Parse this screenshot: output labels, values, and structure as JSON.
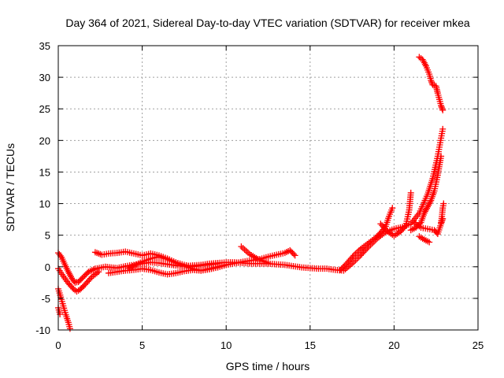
{
  "chart_data": {
    "type": "scatter",
    "title": "Day 364 of 2021, Sidereal Day-to-day VTEC variation (SDTVAR) for receiver mkea",
    "xlabel": "GPS time / hours",
    "ylabel": "SDTVAR / TECUs",
    "xlim": [
      0,
      25
    ],
    "ylim": [
      -10,
      35
    ],
    "xticks": [
      0,
      5,
      10,
      15,
      20,
      25
    ],
    "yticks": [
      -10,
      -5,
      0,
      5,
      10,
      15,
      20,
      25,
      30,
      35
    ],
    "grid": true,
    "marker": "+",
    "color": "#ff0000",
    "series": [
      {
        "name": "trace-a",
        "points": [
          [
            0,
            2.2
          ],
          [
            0.2,
            1.5
          ],
          [
            0.4,
            0.3
          ],
          [
            0.6,
            -0.8
          ],
          [
            0.8,
            -1.8
          ],
          [
            1.0,
            -2.5
          ],
          [
            1.2,
            -2.4
          ],
          [
            1.5,
            -1.6
          ],
          [
            1.8,
            -0.8
          ],
          [
            2.2,
            -0.3
          ],
          [
            2.8,
            0.0
          ],
          [
            3.5,
            -0.2
          ],
          [
            4.0,
            0.1
          ],
          [
            4.5,
            0.3
          ],
          [
            5.0,
            0.5
          ],
          [
            5.5,
            0.7
          ],
          [
            6.0,
            0.6
          ],
          [
            6.5,
            0.4
          ],
          [
            7.0,
            0.2
          ],
          [
            7.5,
            0.1
          ],
          [
            8.0,
            0.2
          ],
          [
            8.5,
            0.3
          ],
          [
            9.0,
            0.5
          ],
          [
            9.5,
            0.6
          ],
          [
            10.0,
            0.7
          ],
          [
            10.5,
            0.7
          ],
          [
            11.0,
            0.6
          ],
          [
            11.5,
            0.5
          ],
          [
            12.0,
            0.5
          ],
          [
            12.5,
            0.5
          ],
          [
            13.0,
            0.4
          ],
          [
            13.5,
            0.3
          ],
          [
            14.0,
            0.1
          ],
          [
            14.5,
            -0.1
          ],
          [
            15.0,
            -0.2
          ],
          [
            15.5,
            -0.3
          ],
          [
            16.0,
            -0.3
          ],
          [
            16.5,
            -0.5
          ],
          [
            17.0,
            -0.6
          ],
          [
            17.5,
            0.5
          ],
          [
            18.0,
            1.8
          ],
          [
            18.5,
            3.2
          ],
          [
            19.0,
            4.5
          ],
          [
            19.5,
            5.5
          ],
          [
            20.0,
            6.0
          ],
          [
            20.5,
            6.3
          ],
          [
            21.0,
            6.8
          ],
          [
            21.5,
            8.5
          ],
          [
            22.0,
            11.5
          ],
          [
            22.3,
            14.0
          ],
          [
            22.6,
            17.5
          ],
          [
            22.9,
            21.8
          ]
        ]
      },
      {
        "name": "trace-b",
        "points": [
          [
            2.2,
            2.3
          ],
          [
            2.6,
            1.9
          ],
          [
            3.0,
            2.1
          ],
          [
            3.5,
            2.2
          ],
          [
            4.0,
            2.4
          ],
          [
            4.5,
            2.1
          ],
          [
            5.0,
            1.8
          ],
          [
            5.5,
            2.1
          ],
          [
            6.0,
            1.8
          ],
          [
            6.5,
            1.3
          ],
          [
            7.0,
            0.7
          ],
          [
            7.5,
            0.3
          ],
          [
            8.0,
            0.0
          ],
          [
            8.5,
            0.2
          ],
          [
            9.0,
            0.3
          ],
          [
            9.5,
            0.5
          ]
        ]
      },
      {
        "name": "trace-c",
        "points": [
          [
            4.2,
            -0.2
          ],
          [
            5.0,
            0.8
          ],
          [
            5.5,
            1.3
          ],
          [
            6.0,
            1.6
          ],
          [
            6.5,
            1.2
          ],
          [
            7.0,
            0.6
          ],
          [
            7.5,
            0.1
          ],
          [
            8.0,
            -0.3
          ],
          [
            8.5,
            -0.6
          ],
          [
            9.0,
            -0.4
          ],
          [
            9.5,
            -0.1
          ],
          [
            10.0,
            0.3
          ],
          [
            11.0,
            0.8
          ],
          [
            12.0,
            1.2
          ],
          [
            12.5,
            1.6
          ],
          [
            13.0,
            1.9
          ],
          [
            13.5,
            2.2
          ],
          [
            13.8,
            2.6
          ],
          [
            14.1,
            1.8
          ]
        ]
      },
      {
        "name": "trace-d",
        "points": [
          [
            3.0,
            -1.0
          ],
          [
            3.5,
            -0.8
          ],
          [
            4.0,
            -0.6
          ],
          [
            4.5,
            -0.5
          ],
          [
            5.0,
            -0.3
          ],
          [
            5.5,
            -0.5
          ],
          [
            6.0,
            -0.9
          ],
          [
            6.5,
            -1.2
          ],
          [
            7.0,
            -1.0
          ],
          [
            7.5,
            -0.7
          ],
          [
            8.0,
            -0.5
          ],
          [
            8.5,
            -0.6
          ],
          [
            9.0,
            -0.3
          ],
          [
            9.5,
            0.0
          ],
          [
            10.0,
            0.3
          ]
        ]
      },
      {
        "name": "trace-e",
        "points": [
          [
            0,
            -0.3
          ],
          [
            0.3,
            -1.5
          ],
          [
            0.6,
            -2.6
          ],
          [
            0.9,
            -3.5
          ],
          [
            1.1,
            -3.9
          ],
          [
            1.3,
            -3.6
          ],
          [
            1.6,
            -2.8
          ],
          [
            2.0,
            -1.6
          ],
          [
            2.4,
            -0.8
          ]
        ]
      },
      {
        "name": "trace-f",
        "points": [
          [
            0,
            -3.5
          ],
          [
            0.15,
            -4.8
          ],
          [
            0.3,
            -6.2
          ],
          [
            0.45,
            -7.6
          ],
          [
            0.6,
            -8.8
          ],
          [
            0.7,
            -9.8
          ]
        ]
      },
      {
        "name": "trace-g",
        "points": [
          [
            0,
            -6.5
          ],
          [
            0.1,
            -7.5
          ]
        ]
      },
      {
        "name": "trace-h",
        "points": [
          [
            10.9,
            3.2
          ],
          [
            11.4,
            2.0
          ],
          [
            11.9,
            1.2
          ],
          [
            12.5,
            0.6
          ]
        ]
      },
      {
        "name": "trace-i",
        "points": [
          [
            16.8,
            -0.5
          ],
          [
            17.2,
            0.6
          ],
          [
            17.6,
            1.8
          ],
          [
            18.0,
            2.8
          ],
          [
            18.5,
            3.8
          ],
          [
            18.9,
            4.6
          ],
          [
            19.2,
            5.4
          ],
          [
            19.5,
            6.4
          ],
          [
            19.7,
            8.0
          ],
          [
            19.9,
            9.3
          ]
        ]
      },
      {
        "name": "trace-j",
        "points": [
          [
            19.2,
            6.8
          ],
          [
            19.6,
            5.6
          ],
          [
            20.0,
            4.9
          ],
          [
            20.4,
            5.6
          ],
          [
            20.7,
            6.5
          ],
          [
            20.9,
            9.0
          ],
          [
            21.0,
            11.7
          ]
        ]
      },
      {
        "name": "trace-k",
        "points": [
          [
            21.0,
            5.8
          ],
          [
            21.3,
            6.2
          ],
          [
            21.6,
            7.0
          ],
          [
            21.8,
            8.5
          ],
          [
            22.0,
            9.5
          ],
          [
            22.2,
            10.5
          ],
          [
            22.4,
            12.0
          ],
          [
            22.6,
            14.5
          ],
          [
            22.8,
            17.5
          ]
        ]
      },
      {
        "name": "trace-l",
        "points": [
          [
            21.5,
            4.8
          ],
          [
            21.8,
            4.3
          ],
          [
            22.1,
            3.9
          ]
        ]
      },
      {
        "name": "trace-m",
        "points": [
          [
            21.2,
            7.0
          ],
          [
            21.6,
            6.2
          ],
          [
            22.0,
            6.0
          ],
          [
            22.4,
            5.8
          ],
          [
            22.6,
            5.2
          ],
          [
            22.8,
            6.8
          ],
          [
            22.9,
            7.6
          ]
        ]
      },
      {
        "name": "trace-n",
        "points": [
          [
            22.8,
            7.0
          ],
          [
            22.85,
            8.0
          ],
          [
            22.9,
            9.3
          ],
          [
            22.95,
            10.0
          ]
        ]
      },
      {
        "name": "trace-o",
        "points": [
          [
            21.5,
            33.2
          ],
          [
            21.7,
            32.8
          ],
          [
            21.9,
            31.8
          ],
          [
            22.1,
            30.5
          ],
          [
            22.2,
            29.5
          ],
          [
            22.3,
            28.8
          ],
          [
            22.5,
            28.6
          ],
          [
            22.6,
            27.5
          ],
          [
            22.7,
            26.5
          ],
          [
            22.8,
            25.5
          ],
          [
            22.9,
            24.8
          ]
        ]
      }
    ]
  }
}
